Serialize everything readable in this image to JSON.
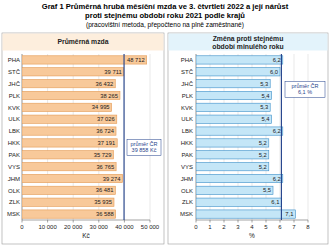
{
  "header": {
    "title": [
      "Graf 1 Průměrná hrubá měsíční mzda ve 3. čtvrtletí 2022 a její nárůst",
      "proti stejnému období roku 2021 podle krajů"
    ],
    "subtitle": [
      "(pracovištní metoda, přepočteno na plně zaměstnané)"
    ]
  },
  "chart_data": [
    {
      "type": "bar",
      "orientation": "horizontal",
      "title": "Průměrná mzda",
      "x_label": "Kč",
      "categories": [
        "PHA",
        "STČ",
        "JHČ",
        "PLK",
        "KVK",
        "ULK",
        "LBK",
        "HKK",
        "PAK",
        "VYS",
        "JHM",
        "OLK",
        "ZLK",
        "MSK"
      ],
      "values": [
        48712,
        39711,
        36432,
        38265,
        34995,
        37026,
        36724,
        37191,
        35729,
        36765,
        39274,
        36481,
        35935,
        36588
      ],
      "value_labels": [
        "48 712",
        "39 711",
        "36 432",
        "38 265",
        "34 995",
        "37 026",
        "36 724",
        "37 191",
        "35 729",
        "36 765",
        "39 274",
        "36 481",
        "35 935",
        "36 588"
      ],
      "data_labels": true,
      "color": "#f8c99a",
      "grid": true,
      "xlim": [
        0,
        50000
      ],
      "xticks": [
        0,
        {
          "value": 10000,
          "label": "10 000"
        },
        {
          "value": 20000,
          "label": "20 000"
        },
        {
          "value": 30000,
          "label": "30 000"
        },
        {
          "value": 40000,
          "label": "40 000"
        },
        {
          "value": 50000,
          "label": "50 000"
        }
      ],
      "annotation": {
        "value": 39858,
        "lines": [
          "průměr ČR",
          "39 858 Kč"
        ]
      }
    },
    {
      "type": "bar",
      "orientation": "horizontal",
      "title": "Změna proti stejnému období minulého roku",
      "x_label": "%",
      "categories": [
        "PHA",
        "STČ",
        "JHČ",
        "PLK",
        "KVK",
        "ULK",
        "LBK",
        "HKK",
        "PAK",
        "VYS",
        "JHM",
        "OLK",
        "ZLK",
        "MSK"
      ],
      "values": [
        6.2,
        6.0,
        5.3,
        5.4,
        5.3,
        5.4,
        6.2,
        5.2,
        5.2,
        5.2,
        6.2,
        5.5,
        6.1,
        7.1
      ],
      "value_labels": [
        "6,2",
        "6,0",
        "5,3",
        "5,4",
        "5,3",
        "5,4",
        "6,2",
        "5,2",
        "5,2",
        "5,2",
        "6,2",
        "5,5",
        "6,1",
        "7,1"
      ],
      "data_labels": true,
      "color": "#c4e6f7",
      "grid": true,
      "xlim": [
        0,
        8
      ],
      "xticks": [
        0,
        1,
        2,
        3,
        4,
        5,
        6,
        7,
        8
      ],
      "annotation": {
        "value": 6.1,
        "lines": [
          "průměr ČR",
          "6,1 %"
        ]
      }
    }
  ]
}
